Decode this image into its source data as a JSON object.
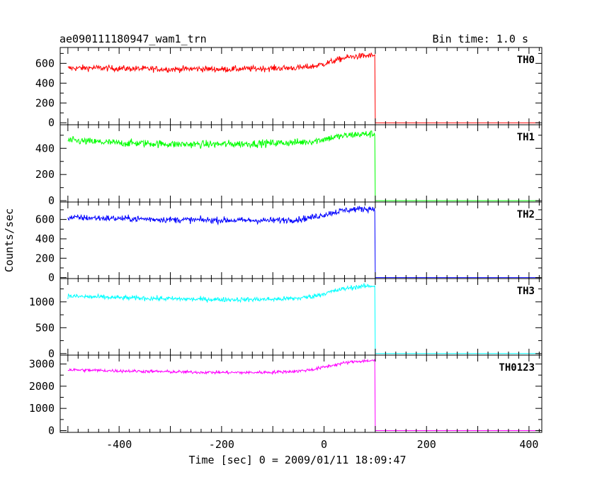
{
  "chart_data": {
    "type": "line",
    "title": "ae090111180947_wam1_trn",
    "subtitle": "Bin time: 1.0 s",
    "xlabel": "Time [sec] 0 = 2009/01/11 18:09:47",
    "ylabel": "Counts/sec",
    "xlim": [
      -515,
      425
    ],
    "x_ticks": [
      -400,
      -200,
      0,
      200,
      400
    ],
    "grid": false,
    "series": [
      {
        "name": "TH0",
        "color": "#ff0000",
        "ylim": [
          -20,
          760
        ],
        "y_ticks": [
          0,
          200,
          400,
          600
        ],
        "x": [
          -500,
          -450,
          -400,
          -350,
          -300,
          -250,
          -200,
          -150,
          -100,
          -50,
          -20,
          0,
          20,
          40,
          60,
          80,
          99,
          100,
          420
        ],
        "values": [
          550,
          555,
          548,
          545,
          540,
          545,
          540,
          545,
          550,
          555,
          570,
          595,
          625,
          655,
          670,
          675,
          680,
          0,
          0
        ],
        "noise": 30
      },
      {
        "name": "TH1",
        "color": "#00ff00",
        "ylim": [
          -10,
          580
        ],
        "y_ticks": [
          0,
          200,
          400
        ],
        "x": [
          -500,
          -450,
          -400,
          -350,
          -300,
          -250,
          -200,
          -150,
          -100,
          -50,
          -20,
          0,
          20,
          40,
          60,
          80,
          99,
          100,
          420
        ],
        "values": [
          460,
          450,
          440,
          438,
          432,
          430,
          432,
          435,
          440,
          445,
          455,
          470,
          485,
          495,
          505,
          508,
          510,
          0,
          0
        ],
        "noise": 28
      },
      {
        "name": "TH2",
        "color": "#0000ff",
        "ylim": [
          -10,
          780
        ],
        "y_ticks": [
          0,
          200,
          400,
          600
        ],
        "x": [
          -500,
          -450,
          -400,
          -350,
          -300,
          -250,
          -200,
          -150,
          -100,
          -50,
          -20,
          0,
          20,
          40,
          60,
          80,
          99,
          100,
          420
        ],
        "values": [
          620,
          615,
          610,
          605,
          598,
          595,
          592,
          590,
          590,
          600,
          625,
          650,
          675,
          695,
          705,
          710,
          710,
          0,
          0
        ],
        "noise": 32
      },
      {
        "name": "TH3",
        "color": "#00ffff",
        "ylim": [
          -30,
          1450
        ],
        "y_ticks": [
          0,
          500,
          1000
        ],
        "x": [
          -500,
          -450,
          -400,
          -350,
          -300,
          -250,
          -200,
          -150,
          -100,
          -50,
          -20,
          0,
          20,
          40,
          60,
          80,
          99,
          100,
          420
        ],
        "values": [
          1110,
          1095,
          1080,
          1070,
          1060,
          1050,
          1045,
          1045,
          1050,
          1070,
          1110,
          1160,
          1210,
          1255,
          1285,
          1300,
          1310,
          0,
          0
        ],
        "noise": 45
      },
      {
        "name": "TH0123",
        "color": "#ff00ff",
        "ylim": [
          -80,
          3400
        ],
        "y_ticks": [
          0,
          1000,
          2000,
          3000
        ],
        "x": [
          -500,
          -450,
          -400,
          -350,
          -300,
          -250,
          -200,
          -150,
          -100,
          -50,
          -20,
          0,
          20,
          40,
          60,
          80,
          99,
          100,
          420
        ],
        "values": [
          2740,
          2715,
          2690,
          2670,
          2650,
          2630,
          2620,
          2615,
          2630,
          2680,
          2760,
          2860,
          2960,
          3050,
          3110,
          3140,
          3160,
          0,
          0
        ],
        "noise": 70
      }
    ]
  }
}
